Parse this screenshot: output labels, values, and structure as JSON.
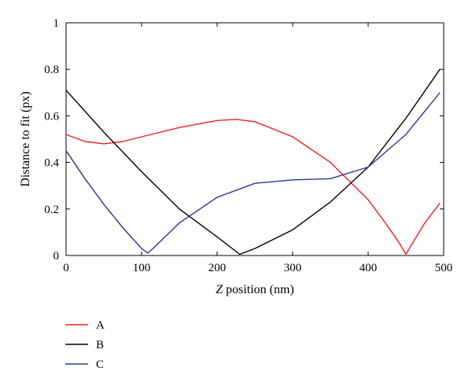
{
  "chart_data": {
    "type": "line",
    "title": "",
    "xlabel_var": "Z",
    "xlabel_rest": " position (nm)",
    "ylabel": "Distance to fit (px)",
    "xlim": [
      0,
      500
    ],
    "ylim": [
      0,
      1
    ],
    "xticks": [
      0,
      100,
      200,
      300,
      400,
      500
    ],
    "yticks": [
      0,
      0.2,
      0.4,
      0.6,
      0.8,
      1
    ],
    "ytick_labels": [
      "0",
      "0.2",
      "0.4",
      "0.6",
      "0.8",
      "1"
    ],
    "grid": false,
    "legend_position": "below",
    "series": [
      {
        "name": "A",
        "color": "#e8221f",
        "x": [
          0,
          25,
          50,
          75,
          100,
          150,
          200,
          225,
          250,
          300,
          350,
          400,
          425,
          440,
          450,
          460,
          475,
          495
        ],
        "y": [
          0.52,
          0.49,
          0.48,
          0.49,
          0.51,
          0.55,
          0.58,
          0.585,
          0.575,
          0.51,
          0.4,
          0.24,
          0.13,
          0.06,
          0.005,
          0.06,
          0.14,
          0.225
        ]
      },
      {
        "name": "B",
        "color": "#000000",
        "x": [
          0,
          50,
          100,
          150,
          200,
          230,
          250,
          300,
          350,
          400,
          450,
          495
        ],
        "y": [
          0.71,
          0.53,
          0.36,
          0.2,
          0.08,
          0.005,
          0.03,
          0.11,
          0.23,
          0.38,
          0.59,
          0.8
        ]
      },
      {
        "name": "C",
        "color": "#2b3595",
        "x": [
          0,
          25,
          50,
          75,
          100,
          108,
          115,
          150,
          200,
          250,
          300,
          350,
          400,
          450,
          495
        ],
        "y": [
          0.45,
          0.33,
          0.22,
          0.12,
          0.03,
          0.01,
          0.03,
          0.14,
          0.25,
          0.31,
          0.325,
          0.33,
          0.38,
          0.52,
          0.7
        ]
      }
    ]
  }
}
